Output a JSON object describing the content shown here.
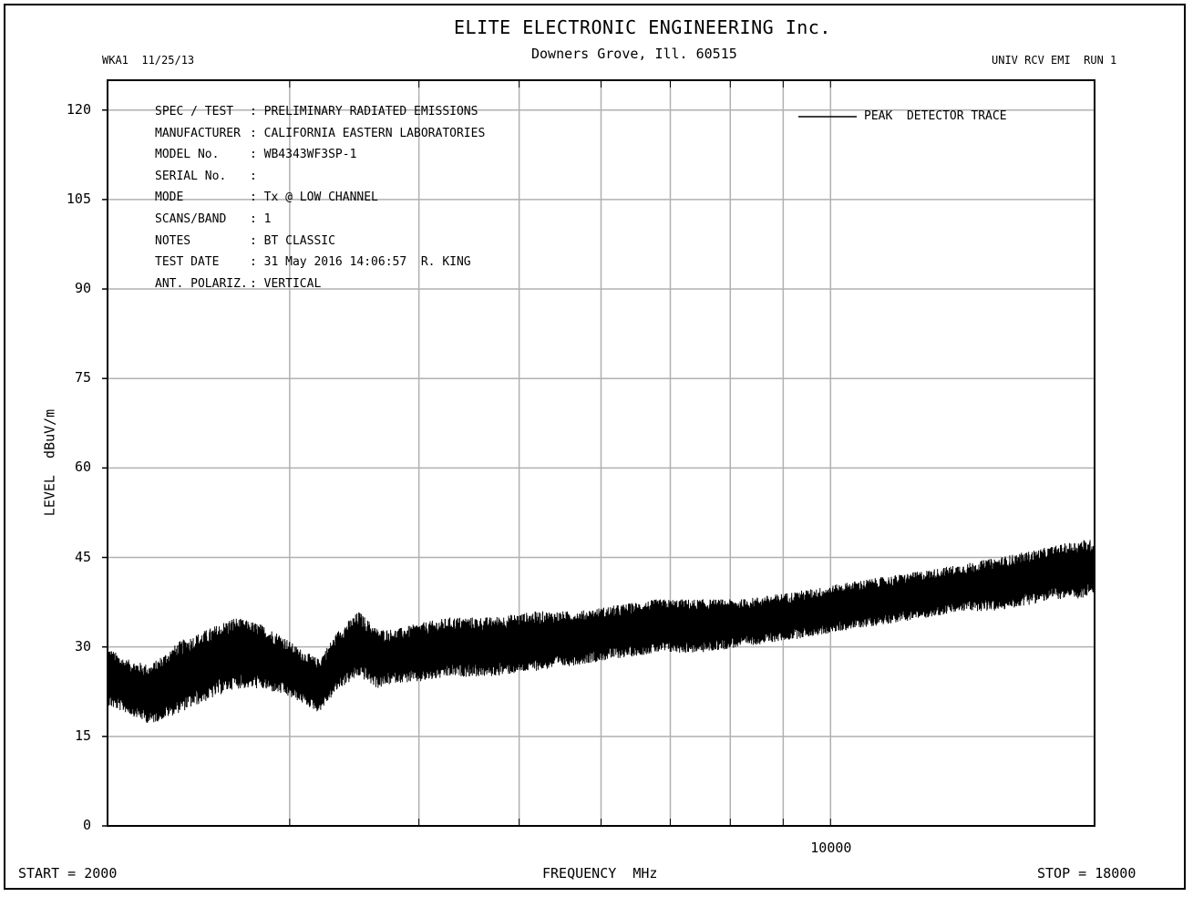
{
  "header": {
    "title": "ELITE ELECTRONIC ENGINEERING Inc.",
    "address": "Downers Grove, Ill. 60515",
    "left_tag": "WKA1  11/25/13",
    "right_tag": "UNIV RCV EMI  RUN 1"
  },
  "info_block": [
    {
      "label": "SPEC / TEST",
      "value": ": PRELIMINARY RADIATED EMISSIONS"
    },
    {
      "label": "MANUFACTURER",
      "value": ": CALIFORNIA EASTERN LABORATORIES"
    },
    {
      "label": "MODEL No.",
      "value": ": WB4343WF3SP-1"
    },
    {
      "label": "SERIAL No.",
      "value": ":"
    },
    {
      "label": "MODE",
      "value": ": Tx @ LOW CHANNEL"
    },
    {
      "label": "SCANS/BAND",
      "value": ": 1"
    },
    {
      "label": "NOTES",
      "value": ": BT CLASSIC"
    },
    {
      "label": "TEST DATE",
      "value": ": 31 May 2016 14:06:57  R. KING"
    },
    {
      "label": "ANT. POLARIZ.",
      "value": ": VERTICAL"
    }
  ],
  "legend": {
    "label": "PEAK  DETECTOR TRACE",
    "color": "#000000"
  },
  "footer": {
    "start": "START = 2000",
    "xlabel": "FREQUENCY  MHz",
    "stop": "STOP = 18000"
  },
  "chart_data": {
    "type": "line",
    "xscale": "log",
    "xlim": [
      2000,
      18000
    ],
    "ylim": [
      0,
      125
    ],
    "xlabel": "FREQUENCY  MHz",
    "ylabel": "LEVEL  dBuV/m",
    "y_ticks": [
      0,
      15,
      30,
      45,
      60,
      75,
      90,
      105,
      120
    ],
    "x_tick_labels": [
      {
        "value": 10000,
        "label": "10000"
      }
    ],
    "x_gridlines": [
      3000,
      4000,
      5000,
      6000,
      7000,
      8000,
      9000,
      10000
    ],
    "grid": true,
    "gridline_color": "#b0b0b0",
    "trace_color": "#000000",
    "series": [
      {
        "name": "PEAK  DETECTOR TRACE",
        "x": [
          2000,
          2080,
          2200,
          2350,
          2500,
          2650,
          2800,
          2950,
          3050,
          3200,
          3350,
          3500,
          3650,
          3800,
          4000,
          4300,
          4700,
          5200,
          5700,
          6200,
          6800,
          7500,
          8200,
          9000,
          9800,
          10500,
          11500,
          12500,
          13500,
          14500,
          15500,
          16500,
          17500,
          18000
        ],
        "low": [
          20,
          19,
          17,
          19,
          21,
          23,
          23,
          22,
          21,
          19,
          23,
          25,
          23,
          24,
          24,
          25,
          25,
          26,
          27,
          28,
          29,
          29,
          30,
          31,
          32,
          33,
          34,
          35,
          36,
          36,
          37,
          38,
          38,
          39
        ],
        "high": [
          30,
          28,
          27,
          31,
          33,
          35,
          34,
          32,
          30,
          28,
          33,
          36,
          33,
          33,
          34,
          35,
          35,
          36,
          36,
          37,
          38,
          38,
          38,
          39,
          40,
          41,
          42,
          43,
          44,
          45,
          46,
          47,
          48,
          48
        ]
      }
    ]
  }
}
